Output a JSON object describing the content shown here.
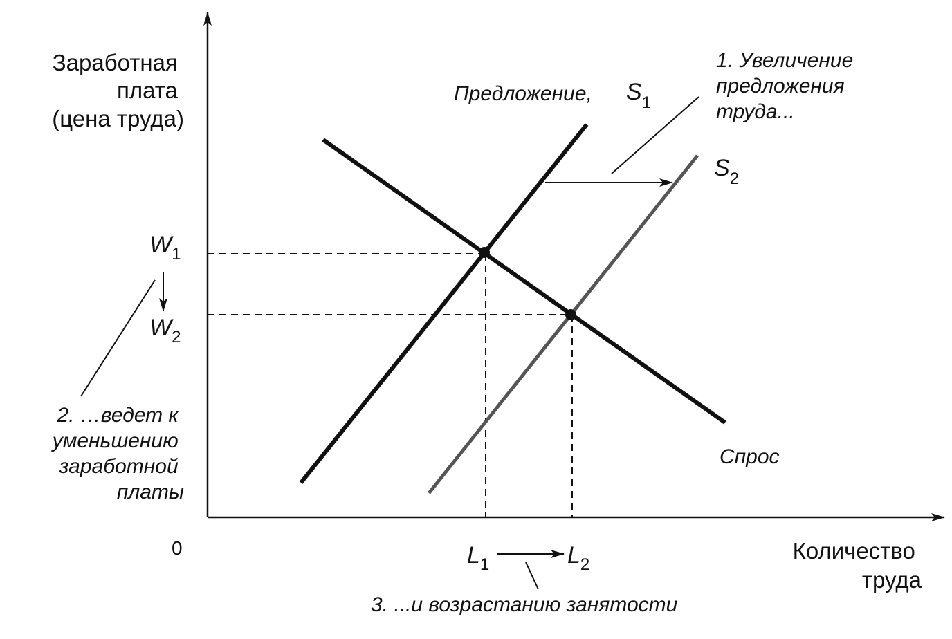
{
  "axes": {
    "y_label": [
      "Заработная",
      "плата",
      "(цена труда)"
    ],
    "x_label": [
      "Количество",
      "труда"
    ],
    "origin": "0"
  },
  "curves": {
    "supply1_label": "Предложение,",
    "supply1_symbol": "S",
    "supply1_sub": "1",
    "supply2_symbol": "S",
    "supply2_sub": "2",
    "demand_label": "Спрос"
  },
  "levels": {
    "w1_symbol": "W",
    "w1_sub": "1",
    "w2_symbol": "W",
    "w2_sub": "2",
    "l1_symbol": "L",
    "l1_sub": "1",
    "l2_symbol": "L",
    "l2_sub": "2"
  },
  "notes": {
    "note1": [
      "1. Увеличение",
      "предложения",
      "труда..."
    ],
    "note2": [
      "2. …ведет к",
      "уменьшению",
      "заработной",
      "платы"
    ],
    "note3": "3. ...и возрастанию занятости"
  },
  "colors": {
    "ink": "#111111",
    "shifted_curve": "#555555"
  }
}
